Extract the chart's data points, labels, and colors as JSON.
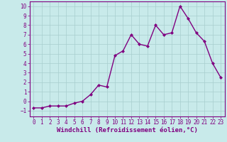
{
  "x": [
    0,
    1,
    2,
    3,
    4,
    5,
    6,
    7,
    8,
    9,
    10,
    11,
    12,
    13,
    14,
    15,
    16,
    17,
    18,
    19,
    20,
    21,
    22,
    23
  ],
  "y": [
    -0.7,
    -0.7,
    -0.5,
    -0.5,
    -0.5,
    -0.2,
    0.0,
    0.7,
    1.7,
    1.5,
    4.8,
    5.3,
    7.0,
    6.0,
    5.8,
    8.0,
    7.0,
    7.2,
    10.0,
    8.7,
    7.2,
    6.3,
    4.0,
    2.5
  ],
  "xlabel": "Windchill (Refroidissement éolien,°C)",
  "line_color": "#800080",
  "marker": "D",
  "marker_size": 2.0,
  "background_color": "#c8eaea",
  "grid_color": "#a8cece",
  "xlim": [
    -0.5,
    23.5
  ],
  "ylim": [
    -1.6,
    10.5
  ],
  "yticks": [
    -1,
    0,
    1,
    2,
    3,
    4,
    5,
    6,
    7,
    8,
    9,
    10
  ],
  "xticks": [
    0,
    1,
    2,
    3,
    4,
    5,
    6,
    7,
    8,
    9,
    10,
    11,
    12,
    13,
    14,
    15,
    16,
    17,
    18,
    19,
    20,
    21,
    22,
    23
  ],
  "tick_fontsize": 5.5,
  "xlabel_fontsize": 6.5,
  "tick_color": "#800080",
  "label_color": "#800080",
  "spine_color": "#800080",
  "linewidth": 1.0
}
